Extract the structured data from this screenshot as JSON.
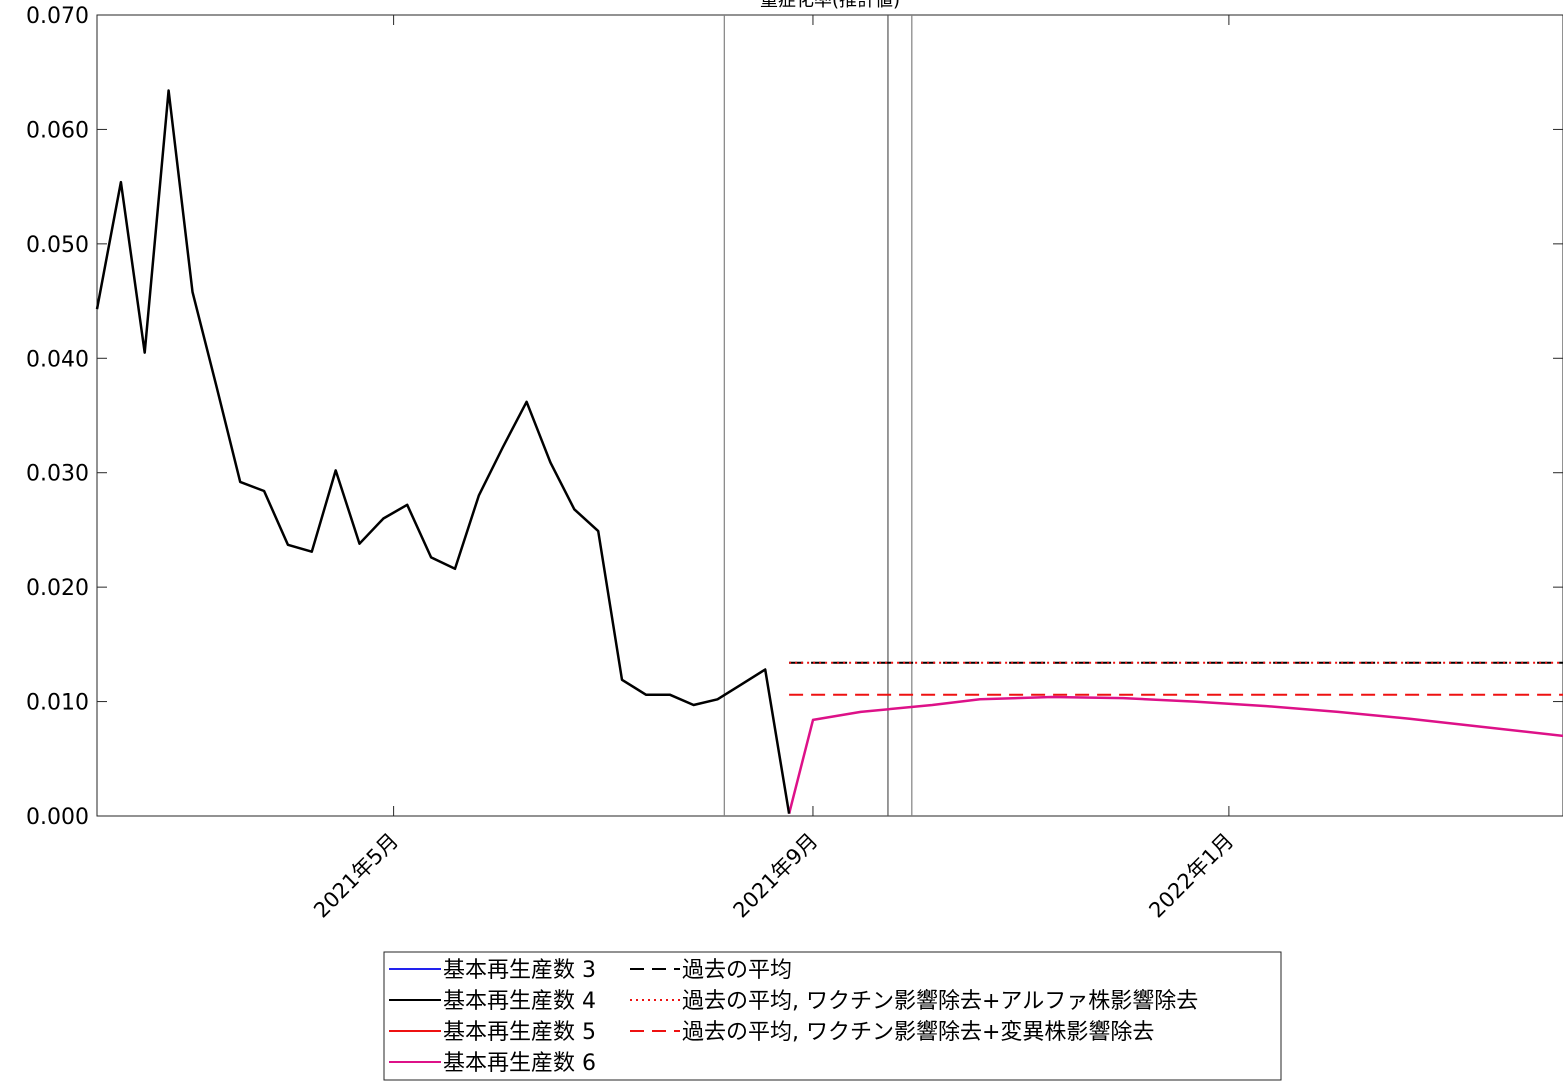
{
  "chart_data": {
    "type": "line",
    "title": "重症化率(推計値)",
    "xlabel": "",
    "ylabel": "",
    "xlim": [
      "2021-02-03",
      "2022-04-09"
    ],
    "ylim": [
      0,
      0.07
    ],
    "grid": false,
    "y_ticks": [
      {
        "value": 0.0,
        "label": "0.000"
      },
      {
        "value": 0.01,
        "label": "0.010"
      },
      {
        "value": 0.02,
        "label": "0.020"
      },
      {
        "value": 0.03,
        "label": "0.030"
      },
      {
        "value": 0.04,
        "label": "0.040"
      },
      {
        "value": 0.05,
        "label": "0.050"
      },
      {
        "value": 0.06,
        "label": "0.060"
      },
      {
        "value": 0.07,
        "label": "0.070"
      }
    ],
    "x_ticks": [
      {
        "date": "2021-05-01",
        "label": "2021年5月"
      },
      {
        "date": "2021-09-01",
        "label": "2021年9月"
      },
      {
        "date": "2022-01-01",
        "label": "2022年1月"
      }
    ],
    "vertical_lines": [
      {
        "date": "2021-08-06",
        "color": "#808080"
      },
      {
        "date": "2021-09-23",
        "color": "#555555"
      },
      {
        "date": "2021-09-30",
        "color": "#808080"
      }
    ],
    "series": [
      {
        "name": "基本再生産数 3",
        "color": "#2222ee",
        "style": "solid",
        "points": []
      },
      {
        "name": "基本再生産数 4",
        "color": "#000000",
        "style": "solid",
        "points": [
          [
            "2021-02-03",
            0.0443
          ],
          [
            "2021-02-10",
            0.0554
          ],
          [
            "2021-02-17",
            0.0405
          ],
          [
            "2021-02-24",
            0.0634
          ],
          [
            "2021-03-03",
            0.0458
          ],
          [
            "2021-03-10",
            0.0376
          ],
          [
            "2021-03-17",
            0.0292
          ],
          [
            "2021-03-24",
            0.0284
          ],
          [
            "2021-03-31",
            0.0237
          ],
          [
            "2021-04-07",
            0.0231
          ],
          [
            "2021-04-14",
            0.0302
          ],
          [
            "2021-04-21",
            0.0238
          ],
          [
            "2021-04-28",
            0.026
          ],
          [
            "2021-05-05",
            0.0272
          ],
          [
            "2021-05-12",
            0.0226
          ],
          [
            "2021-05-19",
            0.0216
          ],
          [
            "2021-05-26",
            0.028
          ],
          [
            "2021-06-02",
            0.0322
          ],
          [
            "2021-06-09",
            0.0362
          ],
          [
            "2021-06-16",
            0.0309
          ],
          [
            "2021-06-23",
            0.0268
          ],
          [
            "2021-06-30",
            0.0249
          ],
          [
            "2021-07-07",
            0.0119
          ],
          [
            "2021-07-14",
            0.0106
          ],
          [
            "2021-07-21",
            0.0106
          ],
          [
            "2021-07-28",
            0.0097
          ],
          [
            "2021-08-04",
            0.0102
          ],
          [
            "2021-08-11",
            0.0115
          ],
          [
            "2021-08-18",
            0.0128
          ],
          [
            "2021-08-25",
            0.0002
          ]
        ]
      },
      {
        "name": "基本再生産数 5",
        "color": "#ee1111",
        "style": "solid",
        "points": []
      },
      {
        "name": "基本再生産数 6",
        "color": "#dd1188",
        "style": "solid",
        "points": [
          [
            "2021-08-25",
            0.0002
          ],
          [
            "2021-09-01",
            0.0084
          ],
          [
            "2021-09-15",
            0.0091
          ],
          [
            "2021-10-06",
            0.0097
          ],
          [
            "2021-10-20",
            0.0102
          ],
          [
            "2021-11-10",
            0.0104
          ],
          [
            "2021-12-01",
            0.0103
          ],
          [
            "2021-12-22",
            0.01
          ],
          [
            "2022-01-12",
            0.0096
          ],
          [
            "2022-02-02",
            0.0091
          ],
          [
            "2022-02-23",
            0.0085
          ],
          [
            "2022-03-16",
            0.0078
          ],
          [
            "2022-04-09",
            0.007
          ]
        ]
      },
      {
        "name": "過去の平均",
        "color": "#000000",
        "style": "dashed",
        "points": [
          [
            "2021-08-25",
            0.0134
          ],
          [
            "2022-04-09",
            0.0134
          ]
        ]
      },
      {
        "name": "過去の平均, ワクチン影響除去+アルファ株影響除去",
        "color": "#ee1111",
        "style": "dotted",
        "points": [
          [
            "2021-08-25",
            0.0134
          ],
          [
            "2022-04-09",
            0.0134
          ]
        ]
      },
      {
        "name": "過去の平均, ワクチン影響除去+変異株影響除去",
        "color": "#ee1111",
        "style": "dashed",
        "points": [
          [
            "2021-08-25",
            0.0106
          ],
          [
            "2022-04-09",
            0.0106
          ]
        ]
      }
    ],
    "legend": {
      "placement": "bottom",
      "columns": [
        [
          "基本再生産数 3",
          "基本再生産数 4",
          "基本再生産数 5",
          "基本再生産数 6"
        ],
        [
          "過去の平均",
          "過去の平均, ワクチン影響除去+アルファ株影響除去",
          "過去の平均, ワクチン影響除去+変異株影響除去"
        ]
      ]
    }
  }
}
